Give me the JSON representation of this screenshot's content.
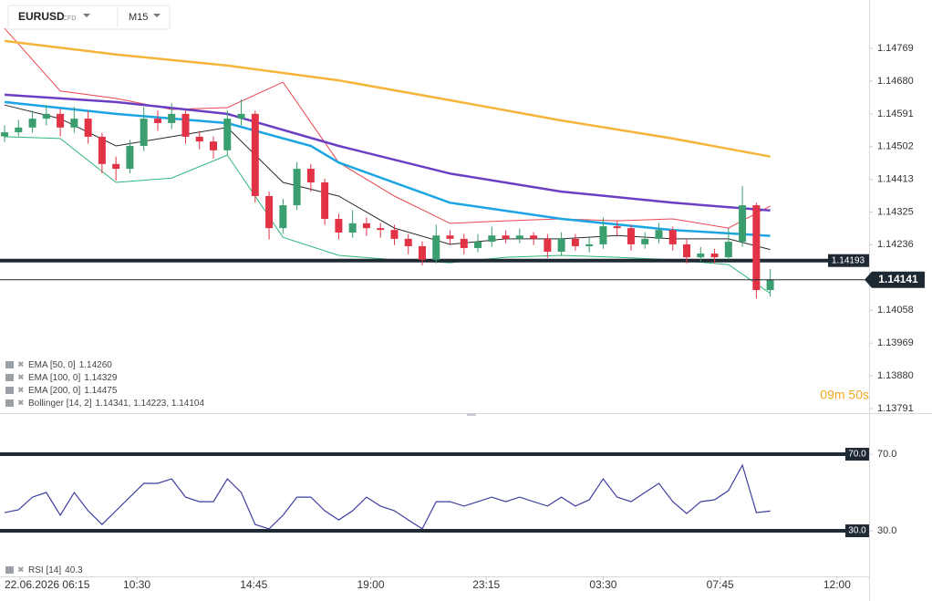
{
  "header": {
    "symbol": "EURUSD",
    "symbol_tag": "CFD",
    "timeframe": "M15"
  },
  "chart_data": [
    {
      "type": "candlestick",
      "open": [
        1.1453,
        1.14541,
        1.14554,
        1.14578,
        1.14591,
        1.14554,
        1.14578,
        1.14529,
        1.14455,
        1.14442,
        1.14504,
        1.14578,
        1.14566,
        1.14591,
        1.14529,
        1.14516,
        1.14492,
        1.14578,
        1.14591,
        1.14368,
        1.14281,
        1.14343,
        1.14442,
        1.14405,
        1.14306,
        1.14269,
        1.14294,
        1.14281,
        1.14276,
        1.14252,
        1.14232,
        1.14195,
        1.14261,
        1.14252,
        1.14227,
        1.14244,
        1.14261,
        1.14252,
        1.14261,
        1.14252,
        1.14217,
        1.14252,
        1.14232,
        1.14237,
        1.14286,
        1.14281,
        1.14237,
        1.14252,
        1.14276,
        1.14237,
        1.14202,
        1.14212,
        1.14202,
        1.14244,
        1.14343,
        1.14113
      ],
      "high": [
        1.1456,
        1.14575,
        1.146,
        1.14615,
        1.14605,
        1.1461,
        1.146,
        1.1454,
        1.14475,
        1.1452,
        1.1461,
        1.146,
        1.1462,
        1.146,
        1.14545,
        1.1453,
        1.146,
        1.1463,
        1.146,
        1.1438,
        1.1436,
        1.1446,
        1.14455,
        1.14415,
        1.1432,
        1.1433,
        1.1431,
        1.14295,
        1.1429,
        1.14265,
        1.14245,
        1.1429,
        1.14275,
        1.14265,
        1.14265,
        1.14285,
        1.14275,
        1.1428,
        1.1427,
        1.14265,
        1.1427,
        1.14265,
        1.14255,
        1.1431,
        1.143,
        1.1429,
        1.1427,
        1.14295,
        1.14285,
        1.1425,
        1.1423,
        1.14225,
        1.1428,
        1.14395,
        1.1435,
        1.1417
      ],
      "low": [
        1.14515,
        1.1453,
        1.1454,
        1.1456,
        1.1453,
        1.1454,
        1.1451,
        1.1443,
        1.1441,
        1.1443,
        1.1449,
        1.14545,
        1.1455,
        1.1451,
        1.14495,
        1.1447,
        1.1448,
        1.1456,
        1.1435,
        1.1425,
        1.14265,
        1.1433,
        1.1438,
        1.1429,
        1.1425,
        1.14255,
        1.1426,
        1.14255,
        1.14235,
        1.1421,
        1.1418,
        1.14185,
        1.14235,
        1.1421,
        1.14215,
        1.1423,
        1.1424,
        1.1424,
        1.14235,
        1.142,
        1.14205,
        1.1422,
        1.14215,
        1.14225,
        1.1426,
        1.1422,
        1.14225,
        1.1424,
        1.1422,
        1.14185,
        1.1419,
        1.14185,
        1.14195,
        1.1423,
        1.1409,
        1.14095
      ],
      "close": [
        1.14541,
        1.14554,
        1.14578,
        1.14591,
        1.14554,
        1.14578,
        1.14529,
        1.14455,
        1.14442,
        1.14504,
        1.14578,
        1.14566,
        1.14591,
        1.14529,
        1.14516,
        1.14492,
        1.14578,
        1.14591,
        1.14368,
        1.14281,
        1.14343,
        1.14442,
        1.14405,
        1.14306,
        1.14269,
        1.14294,
        1.14281,
        1.14276,
        1.14252,
        1.14232,
        1.14195,
        1.14261,
        1.14252,
        1.14227,
        1.14244,
        1.14261,
        1.14252,
        1.14261,
        1.14252,
        1.14217,
        1.14252,
        1.14232,
        1.14237,
        1.14286,
        1.14281,
        1.14237,
        1.14252,
        1.14276,
        1.14237,
        1.14202,
        1.14212,
        1.14202,
        1.14244,
        1.14343,
        1.14113,
        1.14141
      ],
      "up_color": "#3a9e6e",
      "down_color": "#e23346",
      "xlim": [
        -0.33,
        62.1
      ],
      "xticks": [
        {
          "value": 1.1,
          "label": "22.06.2026 06:15"
        },
        {
          "value": 9.5,
          "label": "10:30"
        },
        {
          "value": 17.9,
          "label": "14:45"
        },
        {
          "value": 26.3,
          "label": "19:00"
        },
        {
          "value": 34.6,
          "label": "23:15"
        },
        {
          "value": 43.0,
          "label": "03:30"
        },
        {
          "value": 51.4,
          "label": "07:45"
        },
        {
          "value": 59.8,
          "label": "12:00"
        }
      ],
      "ylim": [
        1.13779,
        1.149
      ],
      "yticks": [
        1.14769,
        {
          "value": 1.1468,
          "label": "1.14680"
        },
        1.14591,
        1.14502,
        1.14413,
        1.14325,
        1.14236,
        1.14058,
        1.13969,
        {
          "value": 1.1388,
          "label": "1.13880"
        },
        1.13791
      ],
      "overlays": [
        {
          "name": "EMA [50, 0]",
          "value_label": "1.14260",
          "color": "#1ba6e3",
          "x": [
            0,
            8,
            16,
            22,
            24,
            32,
            40,
            48,
            55
          ],
          "values": [
            1.14623,
            1.14591,
            1.14566,
            1.14504,
            1.14459,
            1.1435,
            1.14306,
            1.14276,
            1.1426
          ]
        },
        {
          "name": "EMA [100, 0]",
          "value_label": "1.14329",
          "color": "#6b3fc4",
          "x": [
            0,
            8,
            16,
            24,
            32,
            40,
            48,
            55
          ],
          "values": [
            1.14643,
            1.14623,
            1.14591,
            1.14504,
            1.14429,
            1.1438,
            1.1435,
            1.14329
          ]
        },
        {
          "name": "EMA [200, 0]",
          "value_label": "1.14475",
          "color": "#f5b43a",
          "x": [
            0,
            8,
            16,
            24,
            32,
            40,
            48,
            55
          ],
          "values": [
            1.14789,
            1.14752,
            1.14722,
            1.14682,
            1.14628,
            1.14573,
            1.14524,
            1.14475
          ]
        }
      ],
      "bollinger": {
        "name": "Bollinger [14, 2]",
        "value_label": "1.14341, 1.14223, 1.14104",
        "x": [
          0,
          4,
          8,
          12,
          16,
          20,
          24,
          28,
          32,
          36,
          40,
          44,
          48,
          52,
          55
        ],
        "upper": {
          "color": "#e8454f",
          "values": [
            1.14823,
            1.14653,
            1.14633,
            1.14603,
            1.14608,
            1.14677,
            1.14459,
            1.14368,
            1.14294,
            1.14301,
            1.14306,
            1.14301,
            1.14306,
            1.14281,
            1.14341
          ]
        },
        "middle": {
          "color": "#2b2b2b",
          "values": [
            1.14615,
            1.14578,
            1.14504,
            1.14529,
            1.14554,
            1.14405,
            1.14368,
            1.14281,
            1.14237,
            1.14252,
            1.14252,
            1.14261,
            1.14252,
            1.14252,
            1.14223
          ]
        },
        "lower": {
          "color": "#2fb67a",
          "values": [
            1.14529,
            1.14524,
            1.14405,
            1.14417,
            1.14479,
            1.14256,
            1.14207,
            1.14195,
            1.14187,
            1.14202,
            1.14207,
            1.14202,
            1.14195,
            1.14182,
            1.14104
          ]
        }
      },
      "hlines": [
        {
          "value": 1.14193
        }
      ],
      "countdown": "09m 50s"
    },
    {
      "type": "line",
      "series": [
        {
          "name": "RSI [14]",
          "color": "#3d3f9e",
          "values": [
            39.5,
            41,
            47.6,
            50,
            38.1,
            50,
            40.5,
            33.3,
            40.5,
            47.6,
            54.8,
            54.8,
            57.1,
            47.6,
            45.2,
            45.2,
            57.1,
            50,
            33.3,
            31,
            38.1,
            47.6,
            47.6,
            40.5,
            35.7,
            40.5,
            47.6,
            42.9,
            40.5,
            35.7,
            31,
            45.2,
            45.2,
            42.9,
            45.2,
            47.6,
            45.2,
            47.6,
            45.2,
            42.9,
            47.6,
            42.9,
            46.2,
            57.1,
            47.6,
            45.2,
            50,
            54.8,
            45.2,
            39,
            45.2,
            46.2,
            51,
            64.3,
            39.5,
            40.3
          ]
        }
      ],
      "xlim": [
        -0.33,
        62.1
      ],
      "ylim": [
        6.2,
        90.5
      ],
      "yticks": [
        {
          "value": 70,
          "label": "70.0"
        },
        {
          "value": 30,
          "label": "30.0"
        }
      ],
      "hlines": [
        {
          "value": 70,
          "label": "70.0"
        },
        {
          "value": 30,
          "label": "30.0"
        }
      ]
    }
  ]
}
